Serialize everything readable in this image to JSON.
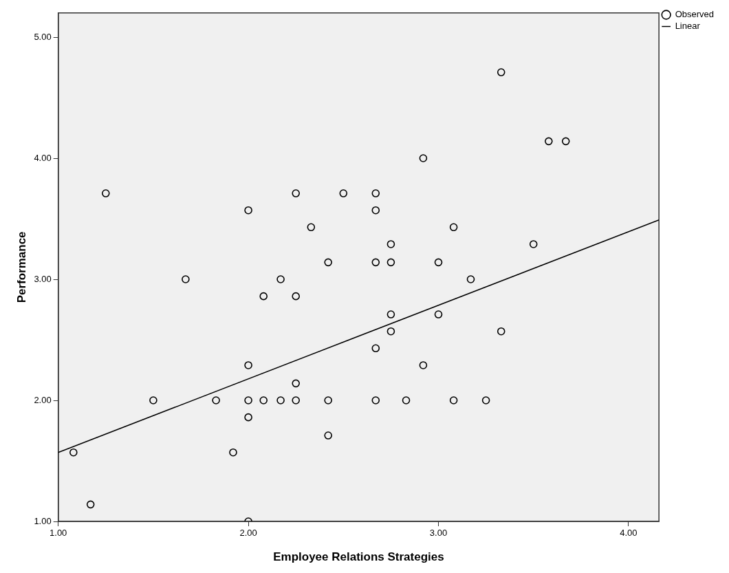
{
  "chart_data": {
    "type": "scatter",
    "xlabel": "Employee Relations Strategies",
    "ylabel": "Performance",
    "xlim": [
      1,
      4.16
    ],
    "ylim": [
      1,
      5.2
    ],
    "xticks": [
      {
        "value": 1,
        "label": "1.00"
      },
      {
        "value": 2,
        "label": "2.00"
      },
      {
        "value": 3,
        "label": "3.00"
      },
      {
        "value": 4,
        "label": "4.00"
      }
    ],
    "yticks": [
      {
        "value": 1,
        "label": "1.00"
      },
      {
        "value": 2,
        "label": "2.00"
      },
      {
        "value": 3,
        "label": "3.00"
      },
      {
        "value": 4,
        "label": "4.00"
      },
      {
        "value": 5,
        "label": "5.00"
      }
    ],
    "grid": false,
    "legend": "top right",
    "series": [
      {
        "name": "Observed",
        "type": "scatter",
        "marker": "circle",
        "color": "#000000",
        "x": [
          1.25,
          2.0,
          2.25,
          2.5,
          2.33,
          2.42,
          3.33,
          3.58,
          3.67,
          2.92,
          2.67,
          2.67,
          3.08,
          2.75,
          3.5,
          2.67,
          2.75,
          3.0,
          3.17,
          1.67,
          2.17,
          2.08,
          2.25,
          2.0,
          2.25,
          1.5,
          1.83,
          2.0,
          2.08,
          2.17,
          2.25,
          2.42,
          2.0,
          2.42,
          1.08,
          1.92,
          1.17,
          2.0,
          2.75,
          3.0,
          2.75,
          3.33,
          2.67,
          2.92,
          2.67,
          2.83,
          3.08,
          3.25
        ],
        "values": [
          3.71,
          3.57,
          3.71,
          3.71,
          3.43,
          3.14,
          4.71,
          4.14,
          4.14,
          4.0,
          3.71,
          3.57,
          3.43,
          3.29,
          3.29,
          3.14,
          3.14,
          3.14,
          3.0,
          3.0,
          3.0,
          2.86,
          2.86,
          2.29,
          2.14,
          2.0,
          2.0,
          2.0,
          2.0,
          2.0,
          2.0,
          2.0,
          1.86,
          1.71,
          1.57,
          1.57,
          1.14,
          1.0,
          2.71,
          2.71,
          2.57,
          2.57,
          2.43,
          2.29,
          2.0,
          2.0,
          2.0,
          2.0
        ]
      },
      {
        "name": "Linear",
        "type": "line",
        "marker": "none",
        "color": "#000000",
        "x": [
          1,
          4.16
        ],
        "values": [
          1.57,
          3.49
        ]
      }
    ]
  }
}
